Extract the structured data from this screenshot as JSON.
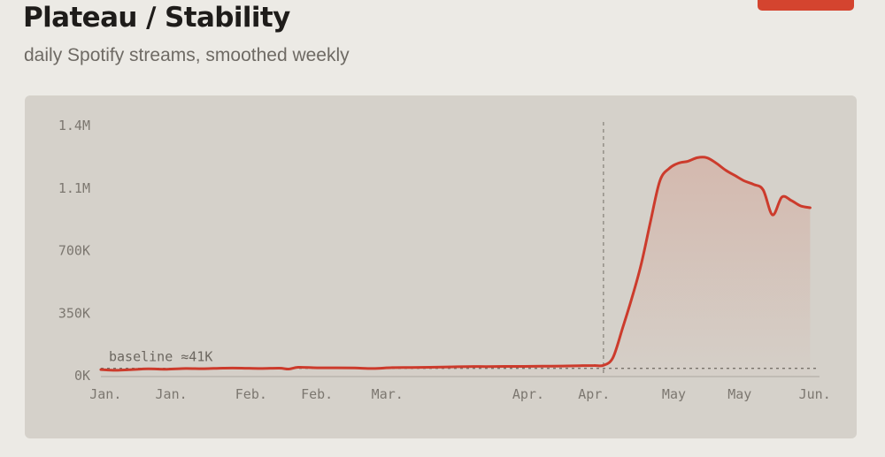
{
  "header": {
    "title": "Plateau / Stability",
    "subtitle": "daily Spotify streams, smoothed weekly"
  },
  "colors": {
    "accent": "#d4442f",
    "line": "#cc3b2c",
    "card": "#d5d1ca",
    "background": "#eceae5"
  },
  "chart_data": {
    "type": "area",
    "title": "Plateau / Stability",
    "subtitle": "daily Spotify streams, smoothed weekly",
    "xlabel": "",
    "ylabel": "",
    "y_ticks": [
      "0K",
      "350K",
      "700K",
      "1.1M",
      "1.4M"
    ],
    "y_tick_values": [
      0,
      350000,
      700000,
      1050000,
      1400000
    ],
    "ylim": [
      0,
      1400000
    ],
    "x_tick_labels": [
      "Jan.",
      "Jan.",
      "Feb.",
      "Feb.",
      "Mar.",
      "Apr.",
      "Apr.",
      "May",
      "May",
      "Jun."
    ],
    "x_tick_days": [
      1,
      15,
      32,
      46,
      61,
      91,
      105,
      122,
      136,
      152
    ],
    "xlim_days": [
      0,
      153
    ],
    "baseline": {
      "value": 41000,
      "label": "baseline ≈41K"
    },
    "marker_day": 107,
    "grid": false,
    "legend": "none",
    "series": [
      {
        "x_days": [
          0,
          3,
          6,
          10,
          14,
          18,
          22,
          26,
          30,
          34,
          38,
          40,
          42,
          46,
          50,
          54,
          58,
          62,
          66,
          70,
          74,
          78,
          82,
          86,
          90,
          94,
          98,
          102,
          105,
          107,
          109,
          111,
          113,
          115,
          117,
          119,
          121,
          123,
          125,
          127,
          129,
          131,
          133,
          135,
          137,
          139,
          141,
          143,
          145,
          147,
          149,
          151
        ],
        "y": [
          34000,
          30000,
          33000,
          38000,
          36000,
          40000,
          39000,
          42000,
          42000,
          40000,
          42000,
          37000,
          47000,
          44000,
          44000,
          43000,
          40000,
          45000,
          46000,
          47000,
          49000,
          51000,
          51000,
          52000,
          52000,
          53000,
          54000,
          56000,
          57000,
          58000,
          100000,
          260000,
          430000,
          620000,
          860000,
          1090000,
          1160000,
          1190000,
          1200000,
          1220000,
          1220000,
          1190000,
          1150000,
          1120000,
          1090000,
          1070000,
          1040000,
          900000,
          1000000,
          980000,
          950000,
          940000
        ]
      }
    ]
  }
}
